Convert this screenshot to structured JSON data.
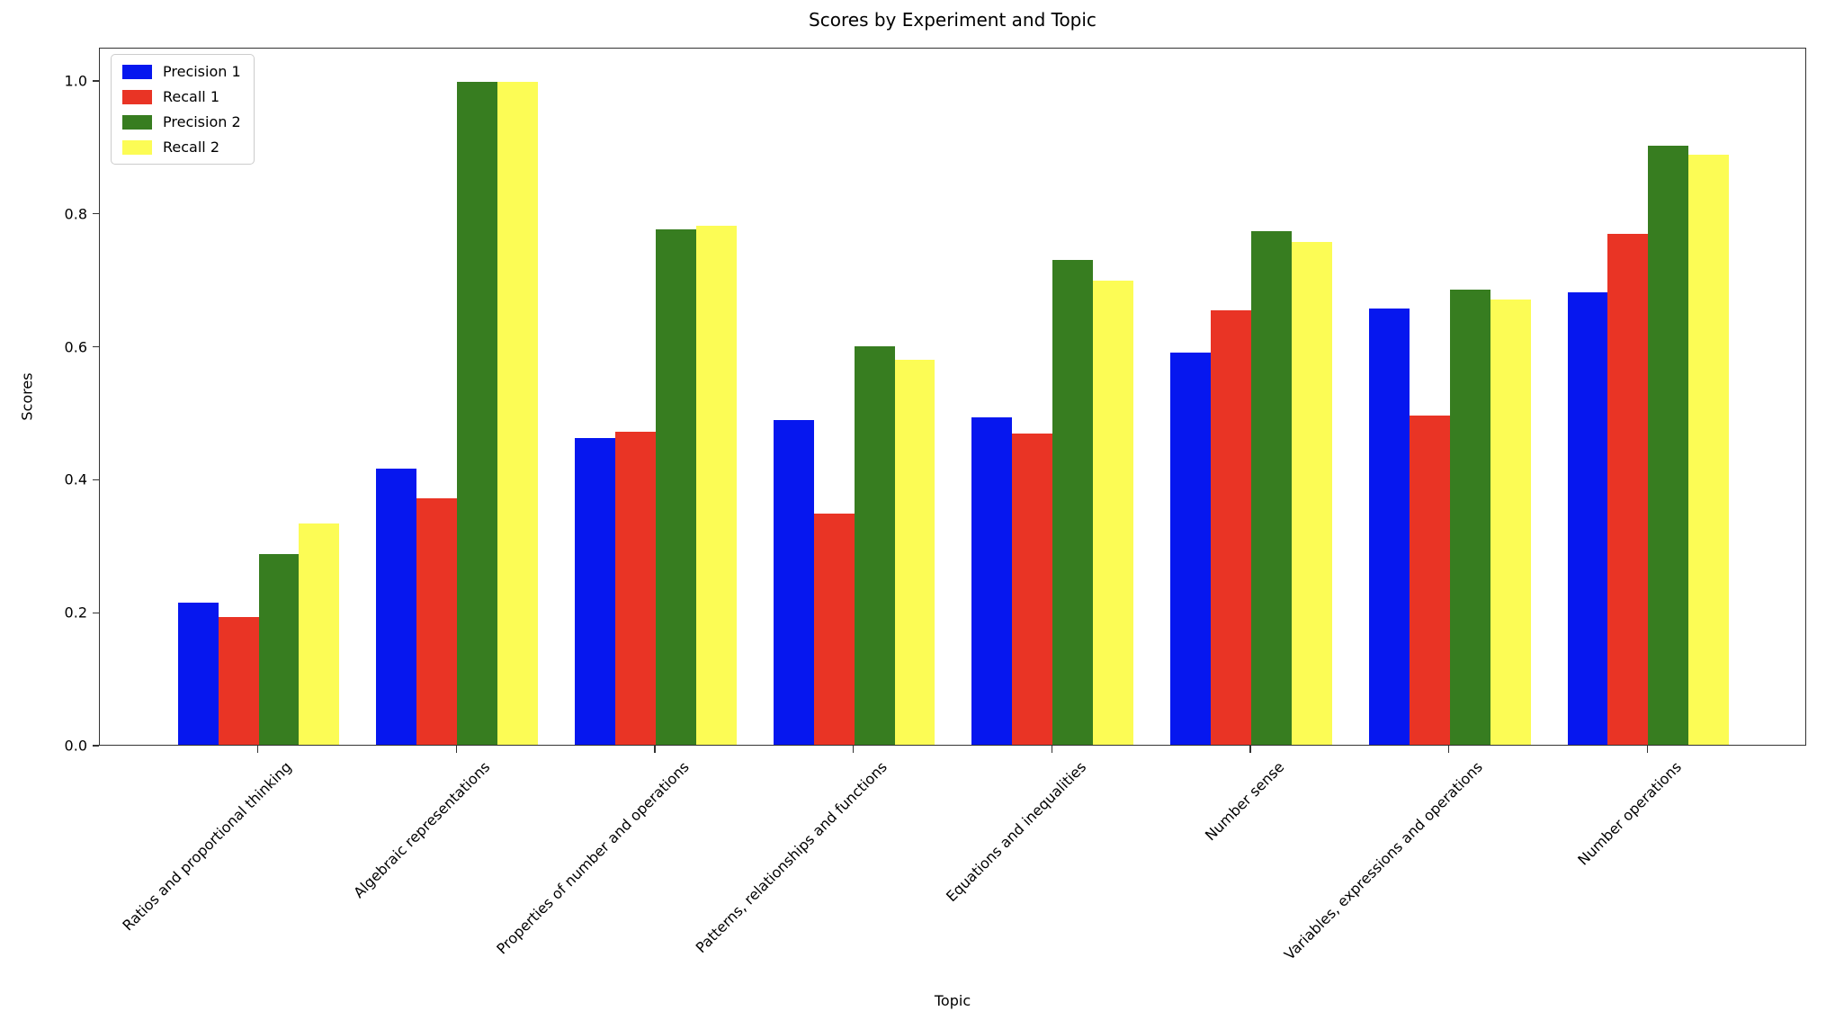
{
  "chart_data": {
    "type": "bar",
    "title": "Scores by Experiment and Topic",
    "xlabel": "Topic",
    "ylabel": "Scores",
    "ylim": [
      0,
      1.05
    ],
    "yticks": [
      "0.0",
      "0.2",
      "0.4",
      "0.6",
      "0.8",
      "1.0"
    ],
    "grid": false,
    "legend_position": "upper left",
    "background_color": "#ffffff",
    "axis_color": "#333333",
    "categories": [
      "Ratios and proportional thinking",
      "Algebraic representations",
      "Properties of number and operations",
      "Patterns, relationships and functions",
      "Equations and inequalities",
      "Number sense",
      "Variables, expressions and operations",
      "Number operations"
    ],
    "series": [
      {
        "name": "Precision 1",
        "color": "#0617ef",
        "values": [
          0.215,
          0.417,
          0.463,
          0.49,
          0.494,
          0.591,
          0.658,
          0.683
        ]
      },
      {
        "name": "Recall 1",
        "color": "#e93425",
        "values": [
          0.192,
          0.372,
          0.472,
          0.348,
          0.47,
          0.655,
          0.497,
          0.77
        ]
      },
      {
        "name": "Precision 2",
        "color": "#377d20",
        "values": [
          0.287,
          1.0,
          0.777,
          0.601,
          0.731,
          0.775,
          0.687,
          0.904
        ]
      },
      {
        "name": "Recall 2",
        "color": "#fcfc55",
        "values": [
          0.334,
          1.0,
          0.783,
          0.58,
          0.7,
          0.759,
          0.671,
          0.89
        ]
      }
    ]
  }
}
